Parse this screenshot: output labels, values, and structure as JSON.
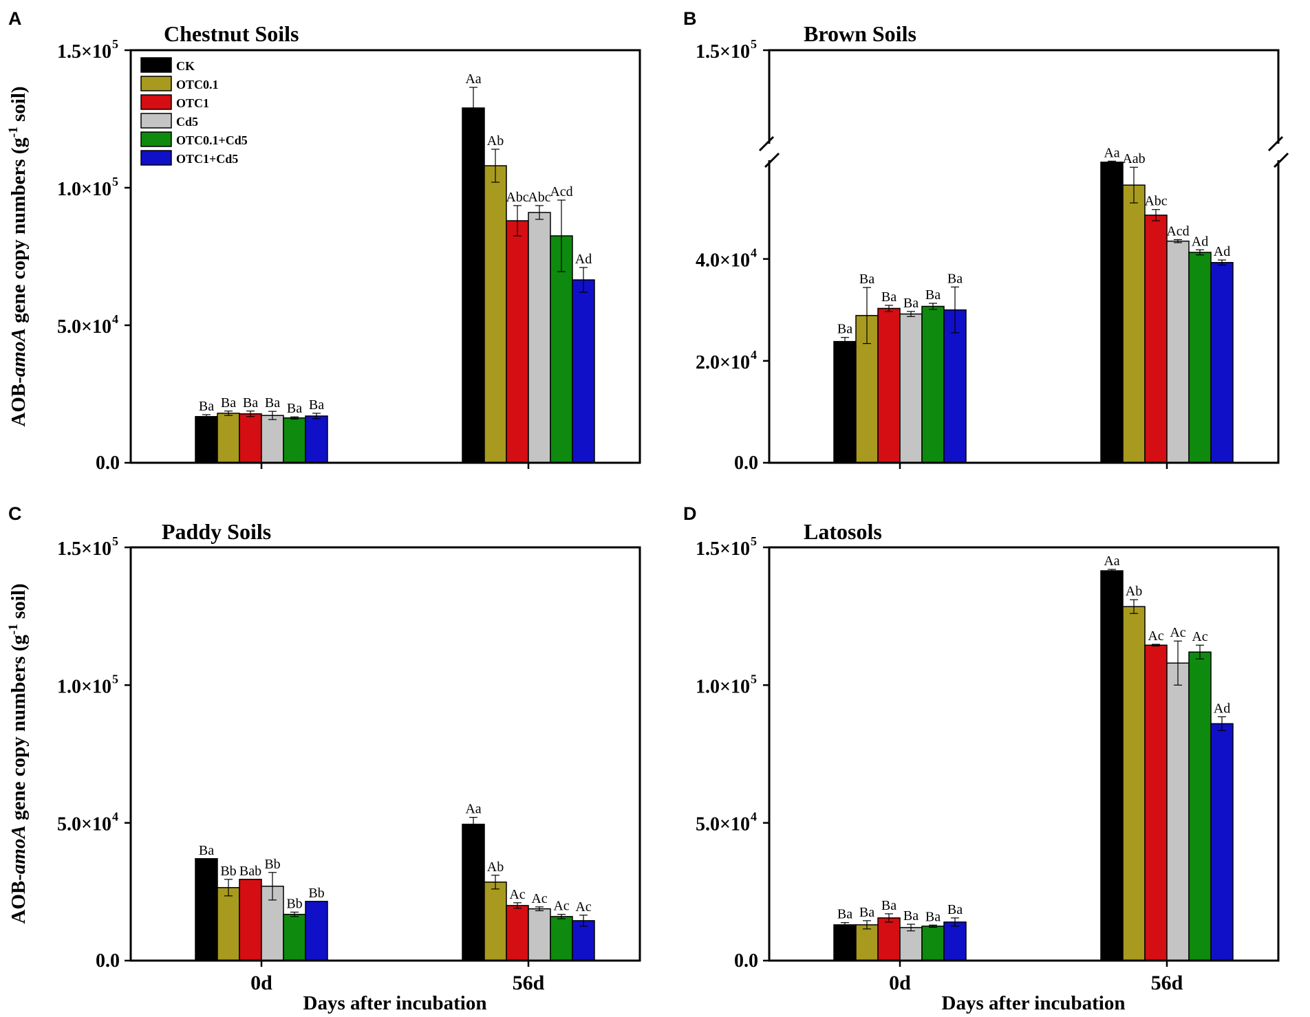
{
  "figure": {
    "ylabel_prefix": "AOB-",
    "ylabel_italic": "amoA",
    "ylabel_middle": " gene copy numbers (g",
    "ylabel_sup": "-1",
    "ylabel_suffix": " soil)",
    "xlabel": "Days after incubation"
  },
  "legend": [
    {
      "name": "CK",
      "color": "#000000"
    },
    {
      "name": "OTC0.1",
      "color": "#a89a1e"
    },
    {
      "name": "OTC1",
      "color": "#d40e12"
    },
    {
      "name": "Cd5",
      "color": "#c4c4c4"
    },
    {
      "name": "OTC0.1+Cd5",
      "color": "#0e8a0e"
    },
    {
      "name": "OTC1+Cd5",
      "color": "#1010c8"
    }
  ],
  "chart_data": [
    {
      "panel": "A",
      "type": "bar",
      "title": "Chestnut Soils",
      "categories": [
        "0d",
        "56d"
      ],
      "show_category_labels": false,
      "ylim": [
        0,
        150000
      ],
      "yticks": [
        {
          "value": 0,
          "label": "0.0"
        },
        {
          "value": 50000,
          "mant": "5.0×10",
          "exp": "4"
        },
        {
          "value": 100000,
          "mant": "1.0×10",
          "exp": "5"
        },
        {
          "value": 150000,
          "mant": "1.5×10",
          "exp": "5"
        }
      ],
      "series": [
        {
          "name": "CK",
          "values": [
            16800,
            129000
          ],
          "errors": [
            700,
            7500
          ],
          "labels": [
            "Ba",
            "Aa"
          ]
        },
        {
          "name": "OTC0.1",
          "values": [
            18000,
            108000
          ],
          "errors": [
            800,
            6000
          ],
          "labels": [
            "Ba",
            "Ab"
          ]
        },
        {
          "name": "OTC1",
          "values": [
            17800,
            88000
          ],
          "errors": [
            1000,
            5500
          ],
          "labels": [
            "Ba",
            "Abc"
          ]
        },
        {
          "name": "Cd5",
          "values": [
            17200,
            91000
          ],
          "errors": [
            1500,
            2500
          ],
          "labels": [
            "Ba",
            "Abc"
          ]
        },
        {
          "name": "OTC0.1+Cd5",
          "values": [
            16300,
            82500
          ],
          "errors": [
            400,
            13000
          ],
          "labels": [
            "Ba",
            "Acd"
          ]
        },
        {
          "name": "OTC1+Cd5",
          "values": [
            17000,
            66500
          ],
          "errors": [
            1000,
            4500
          ],
          "labels": [
            "Ba",
            "Ad"
          ]
        }
      ]
    },
    {
      "panel": "B",
      "type": "bar",
      "title": "Brown Soils",
      "categories": [
        "0d",
        "56d"
      ],
      "show_category_labels": false,
      "axis_break": true,
      "ylim": [
        0,
        150000
      ],
      "yticks": [
        {
          "value": 0,
          "label": "0.0"
        },
        {
          "value": 20000,
          "mant": "2.0×10",
          "exp": "4"
        },
        {
          "value": 40000,
          "mant": "4.0×10",
          "exp": "4"
        },
        {
          "value": 150000,
          "mant": "1.5×10",
          "exp": "5"
        }
      ],
      "series": [
        {
          "name": "CK",
          "values": [
            23800,
            59000
          ],
          "errors": [
            800,
            200
          ],
          "labels": [
            "Ba",
            "Aa"
          ]
        },
        {
          "name": "OTC0.1",
          "values": [
            28900,
            54500
          ],
          "errors": [
            5500,
            3500
          ],
          "labels": [
            "Ba",
            "Aab"
          ]
        },
        {
          "name": "OTC1",
          "values": [
            30300,
            48600
          ],
          "errors": [
            600,
            1100
          ],
          "labels": [
            "Ba",
            "Abc"
          ]
        },
        {
          "name": "Cd5",
          "values": [
            29200,
            43500
          ],
          "errors": [
            500,
            300
          ],
          "labels": [
            "Ba",
            "Acd"
          ]
        },
        {
          "name": "OTC0.1+Cd5",
          "values": [
            30700,
            41300
          ],
          "errors": [
            600,
            500
          ],
          "labels": [
            "Ba",
            "Ad"
          ]
        },
        {
          "name": "OTC1+Cd5",
          "values": [
            30000,
            39300
          ],
          "errors": [
            4500,
            500
          ],
          "labels": [
            "Ba",
            "Ad"
          ]
        }
      ]
    },
    {
      "panel": "C",
      "type": "bar",
      "title": "Paddy Soils",
      "categories": [
        "0d",
        "56d"
      ],
      "show_category_labels": true,
      "ylim": [
        0,
        150000
      ],
      "yticks": [
        {
          "value": 0,
          "label": "0.0"
        },
        {
          "value": 50000,
          "mant": "5.0×10",
          "exp": "4"
        },
        {
          "value": 100000,
          "mant": "1.0×10",
          "exp": "5"
        },
        {
          "value": 150000,
          "mant": "1.5×10",
          "exp": "5"
        }
      ],
      "series": [
        {
          "name": "CK",
          "values": [
            37000,
            49500
          ],
          "errors": [
            0,
            2500
          ],
          "labels": [
            "Ba",
            "Aa"
          ]
        },
        {
          "name": "OTC0.1",
          "values": [
            26500,
            28500
          ],
          "errors": [
            3000,
            2500
          ],
          "labels": [
            "Bb",
            "Ab"
          ]
        },
        {
          "name": "OTC1",
          "values": [
            29500,
            20000
          ],
          "errors": [
            0,
            1000
          ],
          "labels": [
            "Bab",
            "Ac"
          ]
        },
        {
          "name": "Cd5",
          "values": [
            27000,
            18800
          ],
          "errors": [
            5000,
            700
          ],
          "labels": [
            "Bb",
            "Ac"
          ]
        },
        {
          "name": "OTC0.1+Cd5",
          "values": [
            16800,
            16000
          ],
          "errors": [
            800,
            800
          ],
          "labels": [
            "Bb",
            "Ac"
          ]
        },
        {
          "name": "OTC1+Cd5",
          "values": [
            21500,
            14500
          ],
          "errors": [
            0,
            2000
          ],
          "labels": [
            "Bb",
            "Ac"
          ]
        }
      ]
    },
    {
      "panel": "D",
      "type": "bar",
      "title": "Latosols",
      "categories": [
        "0d",
        "56d"
      ],
      "show_category_labels": true,
      "ylim": [
        0,
        150000
      ],
      "yticks": [
        {
          "value": 0,
          "label": "0.0"
        },
        {
          "value": 50000,
          "mant": "5.0×10",
          "exp": "4"
        },
        {
          "value": 100000,
          "mant": "1.0×10",
          "exp": "5"
        },
        {
          "value": 150000,
          "mant": "1.5×10",
          "exp": "5"
        }
      ],
      "series": [
        {
          "name": "CK",
          "values": [
            13000,
            141500
          ],
          "errors": [
            800,
            500
          ],
          "labels": [
            "Ba",
            "Aa"
          ]
        },
        {
          "name": "OTC0.1",
          "values": [
            13000,
            128500
          ],
          "errors": [
            1500,
            2500
          ],
          "labels": [
            "Ba",
            "Ab"
          ]
        },
        {
          "name": "OTC1",
          "values": [
            15500,
            114500
          ],
          "errors": [
            1500,
            300
          ],
          "labels": [
            "Ba",
            "Ac"
          ]
        },
        {
          "name": "Cd5",
          "values": [
            12000,
            108000
          ],
          "errors": [
            1200,
            8000
          ],
          "labels": [
            "Ba",
            "Ac"
          ]
        },
        {
          "name": "OTC0.1+Cd5",
          "values": [
            12500,
            112000
          ],
          "errors": [
            400,
            2500
          ],
          "labels": [
            "Ba",
            "Ac"
          ]
        },
        {
          "name": "OTC1+Cd5",
          "values": [
            14000,
            86000
          ],
          "errors": [
            1500,
            2500
          ],
          "labels": [
            "Ba",
            "Ad"
          ]
        }
      ]
    }
  ]
}
